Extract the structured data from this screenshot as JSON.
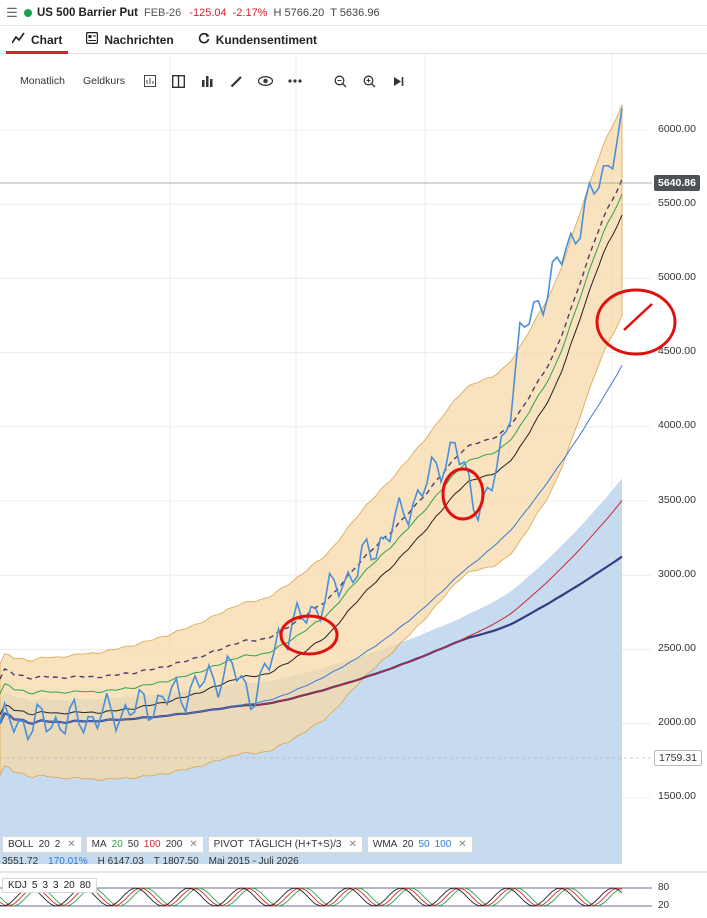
{
  "header": {
    "symbol": "US 500 Barrier Put",
    "expiry": "FEB-26",
    "change": "-125.04",
    "change_pct": "-2.17%",
    "high": "H 5766.20",
    "low": "T 5636.96"
  },
  "tabs": [
    {
      "label": "Chart",
      "icon": "chart-icon",
      "active": true
    },
    {
      "label": "Nachrichten",
      "icon": "news-icon",
      "active": false
    },
    {
      "label": "Kundensentiment",
      "icon": "sentiment-icon",
      "active": false
    }
  ],
  "toolbar": {
    "timeframe": "Monatlich",
    "price_type": "Geldkurs"
  },
  "price_axis": {
    "ticks": [
      "6000.00",
      "5500.00",
      "5000.00",
      "4500.00",
      "4000.00",
      "3500.00",
      "3000.00",
      "2500.00",
      "2000.00",
      "1500.00"
    ],
    "current_price": "5640.86",
    "marker_price": "1759.31"
  },
  "indicators": {
    "boll": {
      "name": "BOLL",
      "p1": "20",
      "p2": "2"
    },
    "ma": {
      "name": "MA",
      "p1": "20",
      "p2": "50",
      "p3": "100",
      "p4": "200"
    },
    "pivot": {
      "name": "PIVOT",
      "text": "TÄGLICH (H+T+S)/3"
    },
    "wma": {
      "name": "WMA",
      "p1": "20",
      "p2": "50",
      "p3": "100"
    },
    "close_symbol": "✕"
  },
  "info_line": {
    "value": "3551.72",
    "pct": "170.01%",
    "high": "H 6147.03",
    "low": "T 1807.50",
    "range": "Mai 2015 - Juli 2026"
  },
  "kdj": {
    "name": "KDJ",
    "params": [
      "5",
      "3",
      "3",
      "20",
      "80"
    ],
    "levels": [
      "80",
      "20"
    ]
  },
  "colors": {
    "accent": "#d0262f",
    "price_line": "#4a90d9",
    "band_fill": "#f5d9a8",
    "area_fill": "#c6dbef",
    "ma20": "#2fa34b",
    "ma50": "#3a7bd5",
    "ma100": "#d0262f",
    "ma200": "#3a3a80"
  }
}
